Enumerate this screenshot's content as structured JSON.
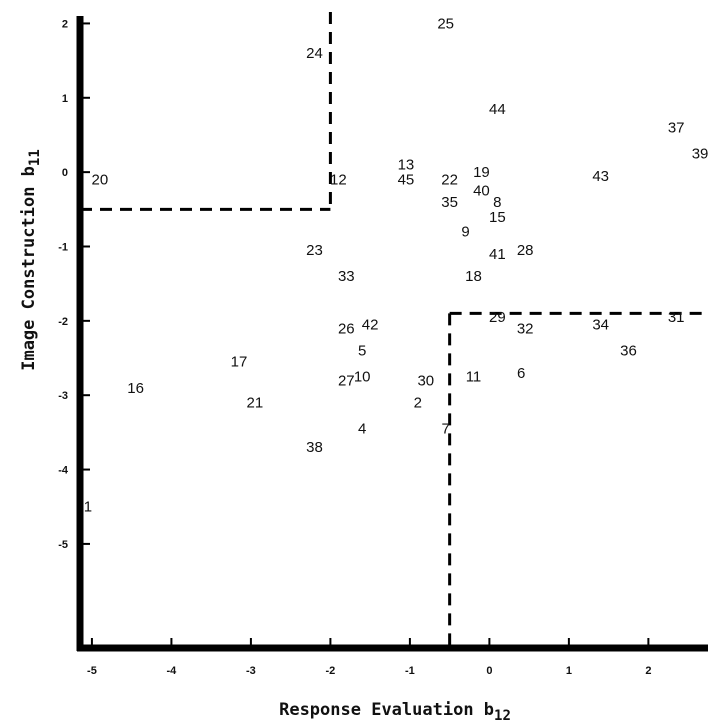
{
  "chart_data": {
    "type": "scatter",
    "xlabel": "Response Evaluation b",
    "xlabel_sub": "12",
    "ylabel": "Image Construction b",
    "ylabel_sub": "11",
    "xlim": [
      -5.15,
      2.75
    ],
    "ylim": [
      -6.4,
      2.1
    ],
    "x_ticks": [
      -5,
      -4,
      -3,
      -2,
      -1,
      0,
      1,
      2
    ],
    "x_tick_labels": [
      "-5",
      "-4",
      "-3",
      "-2",
      "-1",
      "0",
      "1",
      "2"
    ],
    "y_ticks": [
      2,
      1,
      0,
      -1,
      -2,
      -3,
      -4,
      -5
    ],
    "y_tick_labels": [
      "2",
      "1",
      "0",
      "-1",
      "-2",
      "-3",
      "-4",
      "-5"
    ],
    "grid": false,
    "points": [
      {
        "label": "1",
        "x": -5.05,
        "y": -4.5
      },
      {
        "label": "2",
        "x": -0.9,
        "y": -3.1
      },
      {
        "label": "4",
        "x": -1.6,
        "y": -3.45
      },
      {
        "label": "5",
        "x": -1.6,
        "y": -2.4
      },
      {
        "label": "6",
        "x": 0.4,
        "y": -2.7
      },
      {
        "label": "7",
        "x": -0.55,
        "y": -3.45
      },
      {
        "label": "8",
        "x": 0.1,
        "y": -0.4
      },
      {
        "label": "9",
        "x": -0.3,
        "y": -0.8
      },
      {
        "label": "10",
        "x": -1.6,
        "y": -2.75
      },
      {
        "label": "11",
        "x": -0.2,
        "y": -2.75
      },
      {
        "label": "13",
        "x": -1.05,
        "y": 0.1
      },
      {
        "label": "15",
        "x": 0.1,
        "y": -0.6
      },
      {
        "label": "16",
        "x": -4.45,
        "y": -2.9
      },
      {
        "label": "17",
        "x": -3.15,
        "y": -2.55
      },
      {
        "label": "18",
        "x": -0.2,
        "y": -1.4
      },
      {
        "label": "19",
        "x": -0.1,
        "y": 0.0
      },
      {
        "label": "20",
        "x": -4.9,
        "y": -0.1
      },
      {
        "label": "21",
        "x": -2.95,
        "y": -3.1
      },
      {
        "label": "22",
        "x": -0.5,
        "y": -0.1
      },
      {
        "label": "23",
        "x": -2.2,
        "y": -1.05
      },
      {
        "label": "24",
        "x": -2.2,
        "y": 1.6
      },
      {
        "label": "25",
        "x": -0.55,
        "y": 2.0
      },
      {
        "label": "26",
        "x": -1.8,
        "y": -2.1
      },
      {
        "label": "27",
        "x": -1.8,
        "y": -2.8
      },
      {
        "label": "28",
        "x": 0.45,
        "y": -1.05
      },
      {
        "label": "29",
        "x": 0.1,
        "y": -1.95
      },
      {
        "label": "30",
        "x": -0.8,
        "y": -2.8
      },
      {
        "label": "31",
        "x": 2.35,
        "y": -1.95
      },
      {
        "label": "32",
        "x": 0.45,
        "y": -2.1
      },
      {
        "label": "33",
        "x": -1.8,
        "y": -1.4
      },
      {
        "label": "34",
        "x": 1.4,
        "y": -2.05
      },
      {
        "label": "35",
        "x": -0.5,
        "y": -0.4
      },
      {
        "label": "36",
        "x": 1.75,
        "y": -2.4
      },
      {
        "label": "37",
        "x": 2.35,
        "y": 0.6
      },
      {
        "label": "38",
        "x": -2.2,
        "y": -3.7
      },
      {
        "label": "39",
        "x": 2.65,
        "y": 0.25
      },
      {
        "label": "40",
        "x": -0.1,
        "y": -0.25
      },
      {
        "label": "41",
        "x": 0.1,
        "y": -1.1
      },
      {
        "label": "42",
        "x": -1.5,
        "y": -2.05
      },
      {
        "label": "43",
        "x": 1.4,
        "y": -0.05
      },
      {
        "label": "44",
        "x": 0.1,
        "y": 0.85
      },
      {
        "label": "45",
        "x": -1.05,
        "y": -0.1
      },
      {
        "label": "12",
        "x": -1.9,
        "y": -0.1
      }
    ],
    "dashed_regions": [
      {
        "name": "upper-left",
        "x_max": -2.0,
        "y_min": -0.5
      },
      {
        "name": "lower-right",
        "x_min": -0.5,
        "y_max": -1.9
      }
    ]
  }
}
